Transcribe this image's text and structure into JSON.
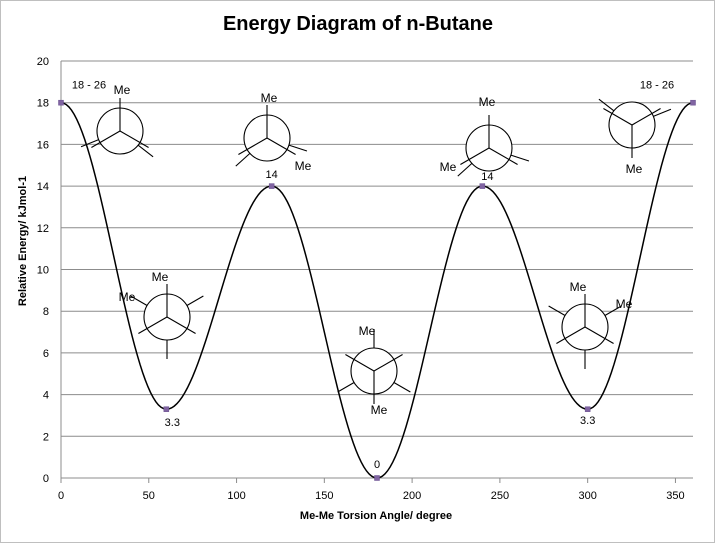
{
  "chart_data": {
    "type": "line",
    "title": "Energy Diagram of n-Butane",
    "xlabel": "Me-Me Torsion Angle/ degree",
    "ylabel": "Relative Energy/ kJmol-1",
    "xlim": [
      0,
      360
    ],
    "ylim": [
      0,
      20
    ],
    "xticks": [
      0,
      50,
      100,
      150,
      200,
      250,
      300,
      350
    ],
    "yticks": [
      0,
      2,
      4,
      6,
      8,
      10,
      12,
      14,
      16,
      18,
      20
    ],
    "grid": "horizontal",
    "legend": "none",
    "curve_color": "#000000",
    "marker_color": "#8064a2",
    "points": [
      {
        "x": 0,
        "y": 18,
        "label": "18 - 26"
      },
      {
        "x": 60,
        "y": 3.3,
        "label": "3.3"
      },
      {
        "x": 120,
        "y": 14,
        "label": "14"
      },
      {
        "x": 180,
        "y": 0,
        "label": "0"
      },
      {
        "x": 240,
        "y": 14,
        "label": "14"
      },
      {
        "x": 300,
        "y": 3.3,
        "label": "3.3"
      },
      {
        "x": 360,
        "y": 18,
        "label": "18 - 26"
      }
    ],
    "group_label": "Me"
  }
}
